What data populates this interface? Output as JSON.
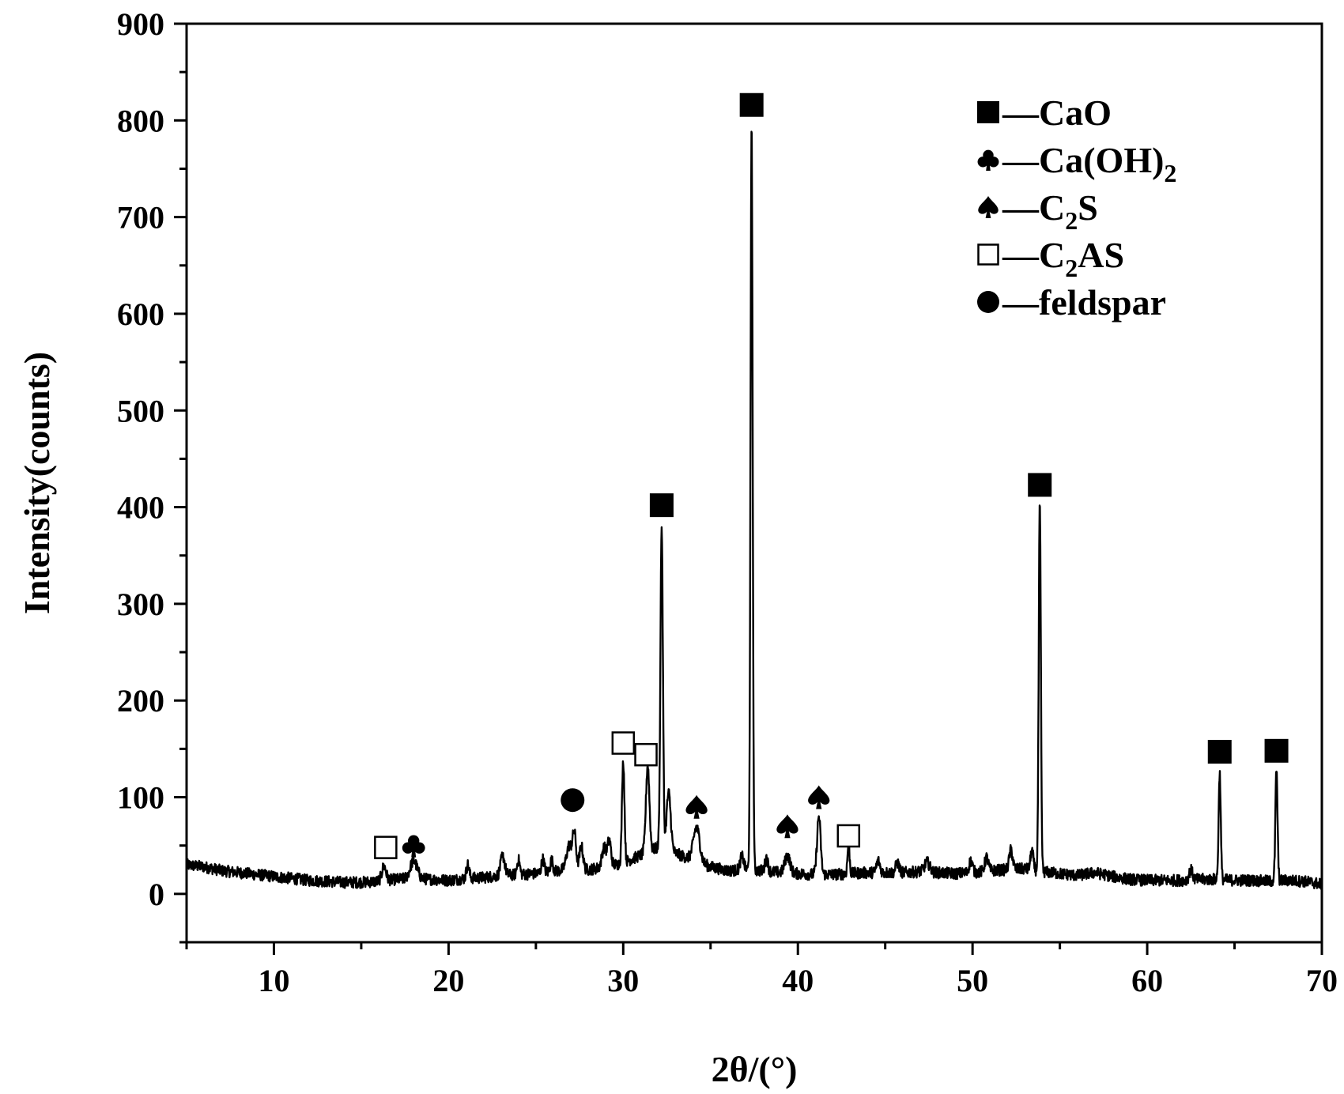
{
  "chart_data": {
    "type": "line",
    "xlabel": "2θ/(°)",
    "ylabel": "Intensity(counts)",
    "xlim": [
      5,
      70
    ],
    "ylim": [
      -50,
      900
    ],
    "xticks": [
      10,
      20,
      30,
      40,
      50,
      60,
      70
    ],
    "yticks": [
      0,
      100,
      200,
      300,
      400,
      500,
      600,
      700,
      800,
      900
    ],
    "grid": false,
    "legend_position": "top-right",
    "baseline": [
      [
        5,
        30
      ],
      [
        6,
        28
      ],
      [
        7,
        24
      ],
      [
        8,
        22
      ],
      [
        9,
        20
      ],
      [
        10,
        18
      ],
      [
        11,
        16
      ],
      [
        12,
        14
      ],
      [
        13,
        13
      ],
      [
        14,
        12
      ],
      [
        15,
        12
      ],
      [
        16,
        13
      ],
      [
        17,
        15
      ],
      [
        18,
        16
      ],
      [
        19,
        15
      ],
      [
        20,
        14
      ],
      [
        21,
        16
      ],
      [
        22,
        17
      ],
      [
        23,
        19
      ],
      [
        24,
        20
      ],
      [
        25,
        21
      ],
      [
        26,
        23
      ],
      [
        27,
        26
      ],
      [
        28,
        25
      ],
      [
        29,
        28
      ],
      [
        30,
        32
      ],
      [
        31,
        40
      ],
      [
        32,
        48
      ],
      [
        33,
        42
      ],
      [
        34,
        35
      ],
      [
        35,
        28
      ],
      [
        36,
        24
      ],
      [
        37,
        25
      ],
      [
        38,
        24
      ],
      [
        39,
        22
      ],
      [
        40,
        21
      ],
      [
        41,
        20
      ],
      [
        42,
        20
      ],
      [
        43,
        21
      ],
      [
        44,
        22
      ],
      [
        45,
        22
      ],
      [
        46,
        22
      ],
      [
        47,
        23
      ],
      [
        48,
        22
      ],
      [
        49,
        21
      ],
      [
        50,
        22
      ],
      [
        51,
        24
      ],
      [
        52,
        25
      ],
      [
        53,
        26
      ],
      [
        54,
        23
      ],
      [
        55,
        21
      ],
      [
        56,
        19
      ],
      [
        57,
        22
      ],
      [
        58,
        18
      ],
      [
        59,
        15
      ],
      [
        60,
        14
      ],
      [
        61,
        14
      ],
      [
        62,
        14
      ],
      [
        63,
        15
      ],
      [
        64,
        15
      ],
      [
        65,
        14
      ],
      [
        66,
        14
      ],
      [
        67,
        13
      ],
      [
        68,
        14
      ],
      [
        69,
        13
      ],
      [
        70,
        10
      ]
    ],
    "peaks": [
      {
        "x": 16.3,
        "height": 15,
        "width": 0.12
      },
      {
        "x": 18.0,
        "height": 18,
        "width": 0.2
      },
      {
        "x": 21.1,
        "height": 14,
        "width": 0.08
      },
      {
        "x": 23.1,
        "height": 20,
        "width": 0.12
      },
      {
        "x": 24.0,
        "height": 15,
        "width": 0.08
      },
      {
        "x": 25.4,
        "height": 14,
        "width": 0.08
      },
      {
        "x": 25.9,
        "height": 12,
        "width": 0.08
      },
      {
        "x": 26.9,
        "height": 24,
        "width": 0.15
      },
      {
        "x": 27.2,
        "height": 36,
        "width": 0.1
      },
      {
        "x": 27.6,
        "height": 24,
        "width": 0.1
      },
      {
        "x": 28.9,
        "height": 20,
        "width": 0.12
      },
      {
        "x": 29.2,
        "height": 26,
        "width": 0.1
      },
      {
        "x": 30.0,
        "height": 106,
        "width": 0.07
      },
      {
        "x": 31.4,
        "height": 90,
        "width": 0.1
      },
      {
        "x": 32.2,
        "height": 333,
        "width": 0.07
      },
      {
        "x": 32.6,
        "height": 60,
        "width": 0.12
      },
      {
        "x": 34.2,
        "height": 35,
        "width": 0.18
      },
      {
        "x": 36.8,
        "height": 14,
        "width": 0.1
      },
      {
        "x": 37.35,
        "height": 775,
        "width": 0.06
      },
      {
        "x": 38.2,
        "height": 14,
        "width": 0.08
      },
      {
        "x": 39.4,
        "height": 18,
        "width": 0.15
      },
      {
        "x": 41.2,
        "height": 60,
        "width": 0.1
      },
      {
        "x": 42.9,
        "height": 30,
        "width": 0.06
      },
      {
        "x": 44.6,
        "height": 12,
        "width": 0.1
      },
      {
        "x": 45.7,
        "height": 10,
        "width": 0.1
      },
      {
        "x": 47.4,
        "height": 10,
        "width": 0.15
      },
      {
        "x": 49.9,
        "height": 12,
        "width": 0.1
      },
      {
        "x": 50.8,
        "height": 14,
        "width": 0.1
      },
      {
        "x": 52.2,
        "height": 20,
        "width": 0.1
      },
      {
        "x": 53.4,
        "height": 20,
        "width": 0.08
      },
      {
        "x": 53.85,
        "height": 378,
        "width": 0.06
      },
      {
        "x": 62.5,
        "height": 10,
        "width": 0.1
      },
      {
        "x": 64.15,
        "height": 110,
        "width": 0.06
      },
      {
        "x": 67.4,
        "height": 116,
        "width": 0.06
      }
    ],
    "markers": [
      {
        "x": 16.4,
        "y": 48,
        "symbol": "open-square"
      },
      {
        "x": 18.0,
        "y": 50,
        "symbol": "club"
      },
      {
        "x": 27.1,
        "y": 97,
        "symbol": "filled-circle"
      },
      {
        "x": 30.0,
        "y": 156,
        "symbol": "open-square"
      },
      {
        "x": 31.3,
        "y": 144,
        "symbol": "open-square"
      },
      {
        "x": 32.2,
        "y": 402,
        "symbol": "filled-square"
      },
      {
        "x": 34.2,
        "y": 90,
        "symbol": "spade"
      },
      {
        "x": 37.35,
        "y": 816,
        "symbol": "filled-square"
      },
      {
        "x": 39.4,
        "y": 70,
        "symbol": "spade"
      },
      {
        "x": 41.2,
        "y": 100,
        "symbol": "spade"
      },
      {
        "x": 42.9,
        "y": 60,
        "symbol": "open-square"
      },
      {
        "x": 53.85,
        "y": 423,
        "symbol": "filled-square"
      },
      {
        "x": 64.15,
        "y": 147,
        "symbol": "filled-square"
      },
      {
        "x": 67.4,
        "y": 148,
        "symbol": "filled-square"
      }
    ],
    "legend": [
      {
        "symbol": "filled-square",
        "name": "—CaO"
      },
      {
        "symbol": "club",
        "name": "—Ca(OH)",
        "sub": "2"
      },
      {
        "symbol": "spade",
        "name": "—C",
        "sub": "2",
        "post": "S"
      },
      {
        "symbol": "open-square",
        "name": "—C",
        "sub": "2",
        "post": "AS"
      },
      {
        "symbol": "filled-circle",
        "name": "—feldspar"
      }
    ]
  }
}
